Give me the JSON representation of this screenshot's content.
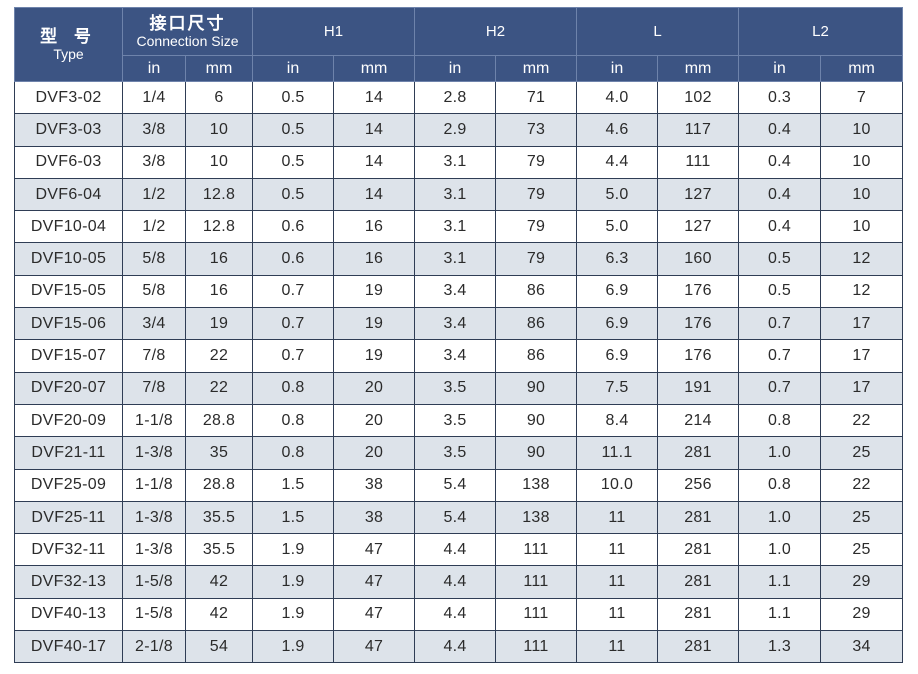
{
  "header": {
    "type_cn": "型 号",
    "type_en": "Type",
    "conn_cn": "接口尺寸",
    "conn_en": "Connection Size",
    "h1": "H1",
    "h2": "H2",
    "l": "L",
    "l2": "L2",
    "unit_in": "in",
    "unit_mm": "mm"
  },
  "rows": [
    [
      "DVF3-02",
      "1/4",
      "6",
      "0.5",
      "14",
      "2.8",
      "71",
      "4.0",
      "102",
      "0.3",
      "7"
    ],
    [
      "DVF3-03",
      "3/8",
      "10",
      "0.5",
      "14",
      "2.9",
      "73",
      "4.6",
      "117",
      "0.4",
      "10"
    ],
    [
      "DVF6-03",
      "3/8",
      "10",
      "0.5",
      "14",
      "3.1",
      "79",
      "4.4",
      "111",
      "0.4",
      "10"
    ],
    [
      "DVF6-04",
      "1/2",
      "12.8",
      "0.5",
      "14",
      "3.1",
      "79",
      "5.0",
      "127",
      "0.4",
      "10"
    ],
    [
      "DVF10-04",
      "1/2",
      "12.8",
      "0.6",
      "16",
      "3.1",
      "79",
      "5.0",
      "127",
      "0.4",
      "10"
    ],
    [
      "DVF10-05",
      "5/8",
      "16",
      "0.6",
      "16",
      "3.1",
      "79",
      "6.3",
      "160",
      "0.5",
      "12"
    ],
    [
      "DVF15-05",
      "5/8",
      "16",
      "0.7",
      "19",
      "3.4",
      "86",
      "6.9",
      "176",
      "0.5",
      "12"
    ],
    [
      "DVF15-06",
      "3/4",
      "19",
      "0.7",
      "19",
      "3.4",
      "86",
      "6.9",
      "176",
      "0.7",
      "17"
    ],
    [
      "DVF15-07",
      "7/8",
      "22",
      "0.7",
      "19",
      "3.4",
      "86",
      "6.9",
      "176",
      "0.7",
      "17"
    ],
    [
      "DVF20-07",
      "7/8",
      "22",
      "0.8",
      "20",
      "3.5",
      "90",
      "7.5",
      "191",
      "0.7",
      "17"
    ],
    [
      "DVF20-09",
      "1-1/8",
      "28.8",
      "0.8",
      "20",
      "3.5",
      "90",
      "8.4",
      "214",
      "0.8",
      "22"
    ],
    [
      "DVF21-11",
      "1-3/8",
      "35",
      "0.8",
      "20",
      "3.5",
      "90",
      "11.1",
      "281",
      "1.0",
      "25"
    ],
    [
      "DVF25-09",
      "1-1/8",
      "28.8",
      "1.5",
      "38",
      "5.4",
      "138",
      "10.0",
      "256",
      "0.8",
      "22"
    ],
    [
      "DVF25-11",
      "1-3/8",
      "35.5",
      "1.5",
      "38",
      "5.4",
      "138",
      "11",
      "281",
      "1.0",
      "25"
    ],
    [
      "DVF32-11",
      "1-3/8",
      "35.5",
      "1.9",
      "47",
      "4.4",
      "111",
      "11",
      "281",
      "1.0",
      "25"
    ],
    [
      "DVF32-13",
      "1-5/8",
      "42",
      "1.9",
      "47",
      "4.4",
      "111",
      "11",
      "281",
      "1.1",
      "29"
    ],
    [
      "DVF40-13",
      "1-5/8",
      "42",
      "1.9",
      "47",
      "4.4",
      "111",
      "11",
      "281",
      "1.1",
      "29"
    ],
    [
      "DVF40-17",
      "2-1/8",
      "54",
      "1.9",
      "47",
      "4.4",
      "111",
      "11",
      "281",
      "1.3",
      "34"
    ]
  ]
}
